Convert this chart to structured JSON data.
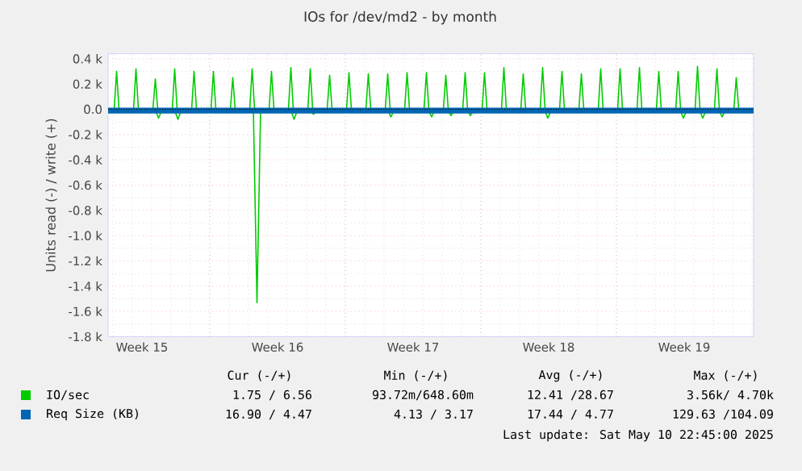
{
  "chart_data": {
    "type": "line",
    "title": "IOs for /dev/md2 - by month",
    "ylabel": "Units read (-) / write (+)",
    "xlim": [
      "2025-04-07T18:00",
      "2025-05-11T02:00"
    ],
    "ylim": [
      -1800,
      440
    ],
    "xticks": [
      {
        "value": "2025-04-09T12:00",
        "label": "Week 15"
      },
      {
        "value": "2025-04-13",
        "label": null
      },
      {
        "value": "2025-04-16T12:00",
        "label": "Week 16"
      },
      {
        "value": "2025-04-20",
        "label": null
      },
      {
        "value": "2025-04-23T12:00",
        "label": "Week 17"
      },
      {
        "value": "2025-04-27",
        "label": null
      },
      {
        "value": "2025-04-30T12:00",
        "label": "Week 18"
      },
      {
        "value": "2025-05-04",
        "label": null
      },
      {
        "value": "2025-05-07T12:00",
        "label": "Week 19"
      }
    ],
    "yticks": [
      {
        "value": 400,
        "label": "0.4 k"
      },
      {
        "value": 200,
        "label": "0.2 k"
      },
      {
        "value": 0,
        "label": "0.0"
      },
      {
        "value": -200,
        "label": "-0.2 k"
      },
      {
        "value": -400,
        "label": "-0.4 k"
      },
      {
        "value": -600,
        "label": "-0.6 k"
      },
      {
        "value": -800,
        "label": "-0.8 k"
      },
      {
        "value": -1000,
        "label": "-1.0 k"
      },
      {
        "value": -1200,
        "label": "-1.2 k"
      },
      {
        "value": -1400,
        "label": "-1.4 k"
      },
      {
        "value": -1600,
        "label": "-1.6 k"
      },
      {
        "value": -1800,
        "label": "-1.8 k"
      }
    ],
    "grid": true,
    "legend": "bottom",
    "series": [
      {
        "name": "IO/sec",
        "color": "#00cc00",
        "x": [
          "2025-04-07T18:00",
          "2025-04-08T01:30",
          "2025-04-08T04:30",
          "2025-04-08T07:30",
          "2025-04-09T01:30",
          "2025-04-09T04:30",
          "2025-04-09T07:30",
          "2025-04-10T01:30",
          "2025-04-10T04:30",
          "2025-04-10T07:30",
          "2025-04-11T01:30",
          "2025-04-11T04:30",
          "2025-04-11T07:30",
          "2025-04-12T01:30",
          "2025-04-12T04:30",
          "2025-04-12T07:30",
          "2025-04-13T01:30",
          "2025-04-13T04:30",
          "2025-04-13T07:30",
          "2025-04-14T01:30",
          "2025-04-14T04:30",
          "2025-04-14T07:30",
          "2025-04-15T01:30",
          "2025-04-15T04:30",
          "2025-04-15T07:30",
          "2025-04-16T01:30",
          "2025-04-16T04:30",
          "2025-04-16T07:30",
          "2025-04-17T01:30",
          "2025-04-17T04:30",
          "2025-04-17T07:30",
          "2025-04-18T01:30",
          "2025-04-18T04:30",
          "2025-04-18T07:30",
          "2025-04-19T01:30",
          "2025-04-19T04:30",
          "2025-04-19T07:30",
          "2025-04-20T01:30",
          "2025-04-20T04:30",
          "2025-04-20T07:30",
          "2025-04-21T01:30",
          "2025-04-21T04:30",
          "2025-04-21T07:30",
          "2025-04-22T01:30",
          "2025-04-22T04:30",
          "2025-04-22T07:30",
          "2025-04-23T01:30",
          "2025-04-23T04:30",
          "2025-04-23T07:30",
          "2025-04-24T01:30",
          "2025-04-24T04:30",
          "2025-04-24T07:30",
          "2025-04-25T01:30",
          "2025-04-25T04:30",
          "2025-04-25T07:30",
          "2025-04-26T01:30",
          "2025-04-26T04:30",
          "2025-04-26T07:30",
          "2025-04-27T01:30",
          "2025-04-27T04:30",
          "2025-04-27T07:30",
          "2025-04-28T01:30",
          "2025-04-28T04:30",
          "2025-04-28T07:30",
          "2025-04-29T01:30",
          "2025-04-29T04:30",
          "2025-04-29T07:30",
          "2025-04-30T01:30",
          "2025-04-30T04:30",
          "2025-04-30T07:30",
          "2025-05-01T01:30",
          "2025-05-01T04:30",
          "2025-05-01T07:30",
          "2025-05-02T01:30",
          "2025-05-02T04:30",
          "2025-05-02T07:30",
          "2025-05-03T01:30",
          "2025-05-03T04:30",
          "2025-05-03T07:30",
          "2025-05-04T01:30",
          "2025-05-04T04:30",
          "2025-05-04T07:30",
          "2025-05-05T01:30",
          "2025-05-05T04:30",
          "2025-05-05T07:30",
          "2025-05-06T01:30",
          "2025-05-06T04:30",
          "2025-05-06T07:30",
          "2025-05-07T01:30",
          "2025-05-07T04:30",
          "2025-05-07T07:30",
          "2025-05-08T01:30",
          "2025-05-08T04:30",
          "2025-05-08T07:30",
          "2025-05-09T01:30",
          "2025-05-09T04:30",
          "2025-05-09T07:30",
          "2025-05-10T01:30",
          "2025-05-10T04:30",
          "2025-05-10T07:30",
          "2025-05-10T23:00"
        ],
        "values": [
          0,
          0,
          300,
          0,
          0,
          320,
          0,
          0,
          240,
          0,
          0,
          320,
          0,
          0,
          300,
          0,
          0,
          300,
          0,
          0,
          250,
          0,
          0,
          320,
          0,
          0,
          300,
          0,
          0,
          330,
          0,
          0,
          320,
          0,
          0,
          270,
          0,
          0,
          290,
          0,
          0,
          280,
          0,
          0,
          280,
          0,
          0,
          290,
          0,
          0,
          290,
          0,
          0,
          270,
          0,
          0,
          290,
          0,
          0,
          290,
          0,
          0,
          330,
          0,
          0,
          280,
          0,
          0,
          330,
          0,
          0,
          300,
          0,
          0,
          280,
          0,
          0,
          320,
          0,
          0,
          320,
          0,
          0,
          330,
          0,
          0,
          300,
          0,
          0,
          300,
          0,
          0,
          340,
          0,
          0,
          320,
          0,
          0,
          250,
          0,
          0
        ]
      },
      {
        "color": "#00cc00",
        "x": [
          "2025-04-07T18:00",
          "2025-04-10T04:00",
          "2025-04-10T08:30",
          "2025-04-10T13:00",
          "2025-04-11T04:00",
          "2025-04-11T08:30",
          "2025-04-11T13:00",
          "2025-04-15T06:00",
          "2025-04-15T10:30",
          "2025-04-15T15:00",
          "2025-04-17T04:00",
          "2025-04-17T08:30",
          "2025-04-17T13:00",
          "2025-04-18T04:00",
          "2025-04-18T08:30",
          "2025-04-18T13:00",
          "2025-04-22T04:00",
          "2025-04-22T08:30",
          "2025-04-22T13:00",
          "2025-04-24T06:30",
          "2025-04-24T11:00",
          "2025-04-24T15:30",
          "2025-04-25T06:30",
          "2025-04-25T11:00",
          "2025-04-25T15:30",
          "2025-04-26T06:30",
          "2025-04-26T11:00",
          "2025-04-26T15:30",
          "2025-04-30T06:30",
          "2025-04-30T11:00",
          "2025-04-30T15:30",
          "2025-05-07T06:30",
          "2025-05-07T11:00",
          "2025-05-07T15:30",
          "2025-05-08T06:30",
          "2025-05-08T11:00",
          "2025-05-08T15:30",
          "2025-05-09T06:30",
          "2025-05-09T11:00",
          "2025-05-09T15:30",
          "2025-05-10T23:00"
        ],
        "values": [
          0,
          0,
          -70,
          0,
          0,
          -80,
          0,
          0,
          -1530,
          0,
          0,
          -80,
          0,
          0,
          -40,
          0,
          0,
          -60,
          0,
          0,
          -60,
          0,
          0,
          -50,
          0,
          0,
          -50,
          0,
          0,
          -70,
          0,
          0,
          -70,
          0,
          0,
          -70,
          0,
          0,
          -60,
          0,
          0
        ]
      },
      {
        "name": "Req Size (KB)",
        "color": "#0066b3",
        "x": [
          "2025-04-07T18:00",
          "2025-05-11T02:00"
        ],
        "values": [
          0,
          0
        ]
      },
      {
        "color": "#0066b3",
        "x": [
          "2025-04-07T18:00",
          "2025-05-11T02:00"
        ],
        "values": [
          -20,
          -20
        ]
      }
    ],
    "annotations": [
      "Cur (-/+)",
      "Min (-/+)",
      "Avg (-/+)",
      "Max (-/+)",
      "1.75 / 6.56",
      "93.72m/648.60m",
      "12.41 /28.67",
      "3.56k/ 4.70k",
      "16.90 / 4.47",
      "4.13 / 3.17",
      "17.44 / 4.77",
      "129.63 /104.09",
      "Last update: Sat May 10 22:45:00 2025"
    ]
  }
}
